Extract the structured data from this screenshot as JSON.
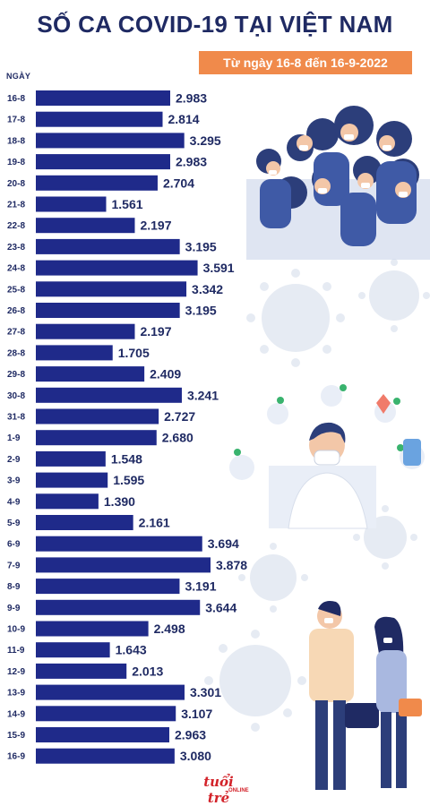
{
  "header": {
    "title": "SỐ CA COVID-19 TẠI VIỆT NAM",
    "subtitle": "Từ ngày 16-8 đến 16-9-2022"
  },
  "footer": {
    "brand": "tuổi trẻ",
    "brand_sub": "ONLINE"
  },
  "colors": {
    "bar": "#1f2a8a",
    "value_text": "#1f2a63",
    "title": "#1f2a63",
    "accent": "#f08a4b"
  },
  "chart_data": {
    "type": "bar",
    "orientation": "horizontal",
    "ylabel": "NGÀY",
    "categories": [
      "16-8",
      "17-8",
      "18-8",
      "19-8",
      "20-8",
      "21-8",
      "22-8",
      "23-8",
      "24-8",
      "25-8",
      "26-8",
      "27-8",
      "28-8",
      "29-8",
      "30-8",
      "31-8",
      "1-9",
      "2-9",
      "3-9",
      "4-9",
      "5-9",
      "6-9",
      "7-9",
      "8-9",
      "9-9",
      "10-9",
      "11-9",
      "12-9",
      "13-9",
      "14-9",
      "15-9",
      "16-9"
    ],
    "values": [
      2983,
      2814,
      3295,
      2983,
      2704,
      1561,
      2197,
      3195,
      3591,
      3342,
      3195,
      2197,
      1705,
      2409,
      3241,
      2727,
      2680,
      1548,
      1595,
      1390,
      2161,
      3694,
      3878,
      3191,
      3644,
      2498,
      1643,
      2013,
      3301,
      3107,
      2963,
      3080
    ],
    "value_labels": [
      "2.983",
      "2.814",
      "3.295",
      "2.983",
      "2.704",
      "1.561",
      "2.197",
      "3.195",
      "3.591",
      "3.342",
      "3.195",
      "2.197",
      "1.705",
      "2.409",
      "3.241",
      "2.727",
      "2.680",
      "1.548",
      "1.595",
      "1.390",
      "2.161",
      "3.694",
      "3.878",
      "3.191",
      "3.644",
      "2.498",
      "1.643",
      "2.013",
      "3.301",
      "3.107",
      "2.963",
      "3.080"
    ],
    "grid": false,
    "legend": "none"
  }
}
